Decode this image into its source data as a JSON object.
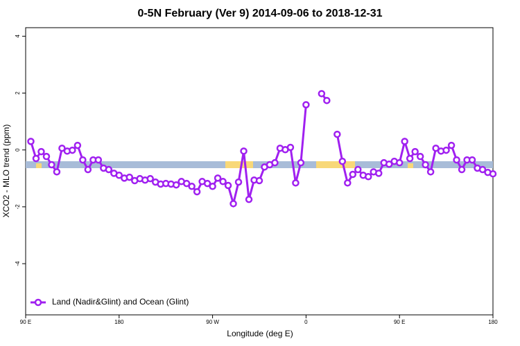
{
  "chart_data": {
    "type": "line",
    "title": "0-5N February (Ver 9)   2014-09-06 to 2018-12-31",
    "x_label": "Longitude (deg E)",
    "y_label": "XCO2 - MLO trend (ppm)",
    "xlim": [
      90,
      540
    ],
    "ylim": [
      -5.8,
      4.3
    ],
    "xticks": [
      {
        "value": 90,
        "label": "90 E"
      },
      {
        "value": 180,
        "label": "180"
      },
      {
        "value": 270,
        "label": "90 W"
      },
      {
        "value": 360,
        "label": "0"
      },
      {
        "value": 450,
        "label": "90 E"
      },
      {
        "value": 540,
        "label": "180"
      }
    ],
    "yticks": [
      -4,
      -2,
      0,
      2,
      4
    ],
    "legend": "bottomleft",
    "x": [
      95,
      100,
      105,
      110,
      115,
      120,
      125,
      130,
      135,
      140,
      145,
      150,
      155,
      160,
      165,
      170,
      175,
      180,
      185,
      190,
      195,
      200,
      205,
      210,
      215,
      220,
      225,
      230,
      235,
      240,
      245,
      250,
      255,
      260,
      265,
      270,
      275,
      280,
      285,
      290,
      295,
      300,
      305,
      310,
      315,
      320,
      325,
      330,
      335,
      340,
      345,
      350,
      355,
      360,
      365,
      370,
      375,
      380,
      385,
      390,
      395,
      400,
      405,
      410,
      415,
      420,
      425,
      430,
      435,
      440,
      445,
      450,
      455,
      460,
      465,
      470,
      475,
      480,
      485,
      490,
      495,
      500,
      505,
      510,
      515,
      520,
      525,
      530,
      535,
      540
    ],
    "series": [
      {
        "name": "Land (Nadir&Glint) and Ocean (Glint)",
        "color": "#a020f0",
        "values": [
          0.3,
          -0.3,
          -0.06,
          -0.23,
          -0.52,
          -0.77,
          0.06,
          -0.04,
          -0.01,
          0.16,
          -0.35,
          -0.69,
          -0.35,
          -0.35,
          -0.64,
          -0.69,
          -0.82,
          -0.89,
          -0.99,
          -0.96,
          -1.08,
          -1.01,
          -1.06,
          -1.01,
          -1.13,
          -1.2,
          -1.18,
          -1.2,
          -1.23,
          -1.11,
          -1.18,
          -1.28,
          -1.47,
          -1.11,
          -1.18,
          -1.28,
          -0.99,
          -1.11,
          -1.25,
          -1.89,
          -1.13,
          -0.04,
          -1.74,
          -1.06,
          -1.08,
          -0.6,
          -0.52,
          -0.45,
          0.06,
          0.01,
          0.09,
          -1.16,
          -0.45,
          1.59,
          null,
          null,
          1.98,
          1.74,
          null,
          0.55,
          -0.4,
          -1.16,
          -0.86,
          -0.69,
          -0.89,
          -0.94,
          -0.77,
          -0.82,
          -0.45,
          -0.5,
          -0.4,
          -0.45,
          0.3,
          -0.3,
          -0.06,
          -0.23,
          -0.52,
          -0.77,
          0.06,
          -0.04,
          -0.01,
          0.16,
          -0.35,
          -0.69,
          -0.35,
          -0.35,
          -0.64,
          -0.69,
          -0.79,
          -0.84
        ]
      }
    ]
  }
}
